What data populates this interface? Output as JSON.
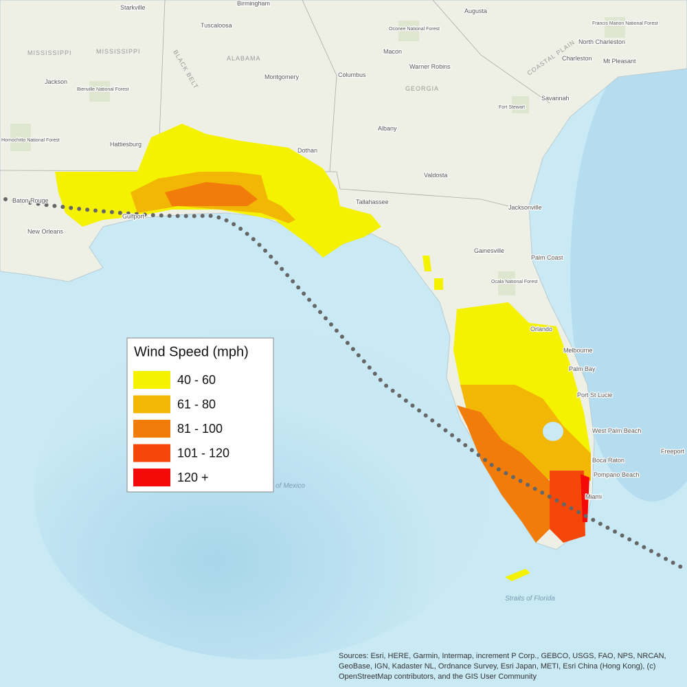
{
  "legend": {
    "title": "Wind Speed (mph)",
    "items": [
      {
        "label": "40 - 60",
        "color": "#f5f200"
      },
      {
        "label": "61 - 80",
        "color": "#f2b705"
      },
      {
        "label": "81 - 100",
        "color": "#f27c0a"
      },
      {
        "label": "101 - 120",
        "color": "#f5470a"
      },
      {
        "label": "120 +",
        "color": "#f50a0a"
      }
    ]
  },
  "places": [
    "Starkville",
    "Birmingham",
    "Augusta",
    "Tuscaloosa",
    "Francis Marion National Forest",
    "Oconee National Forest",
    "North Charleston",
    "MISSISSIPPI",
    "MISSISSIPPI",
    "ALABAMA",
    "Macon",
    "Charleston",
    "Mt Pleasant",
    "Jackson",
    "Bienville National Forest",
    "Montgomery",
    "Columbus",
    "Warner Robins",
    "GEORGIA",
    "Savannah",
    "Fort Stewart",
    "Homochitto National Forest",
    "Hattiesburg",
    "Albany",
    "Dothan",
    "Valdosta",
    "Baton Rouge",
    "Tallahassee",
    "Jacksonville",
    "Gulfport",
    "New Orleans",
    "Gainesville",
    "Palm Coast",
    "Ocala National Forest",
    "Orlando",
    "Melbourne",
    "Palm Bay",
    "Port St Lucie",
    "West Palm Beach",
    "Boca Raton",
    "Pompano Beach",
    "Miami",
    "Freeport",
    "Gulf of Mexico",
    "Straits of Florida",
    "BLACK BELT",
    "COASTAL PLAIN"
  ],
  "attribution": "Sources: Esri, HERE, Garmin, Intermap, increment P Corp., GEBCO, USGS, FAO, NPS, NRCAN, GeoBase, IGN, Kadaster NL, Ordnance Survey, Esri Japan, METI, Esri China (Hong Kong), (c) OpenStreetMap contributors, and the GIS User Community"
}
